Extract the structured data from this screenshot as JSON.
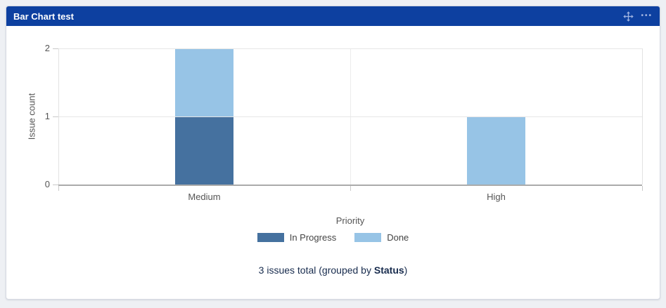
{
  "colors": {
    "page_bg": "#eef0f4",
    "header_bg": "#0d40a0",
    "header_icon": "#9fb3e0",
    "axis_text": "#555555",
    "legend_text": "#444444",
    "footer_text": "#172b4d",
    "grid_line": "#e6e6e6",
    "boundary_line": "#ececec",
    "axis_line": "#ababab",
    "tick_mark": "#c9c9c9"
  },
  "gadget": {
    "title": "Bar Chart test"
  },
  "chart_data": {
    "type": "bar",
    "stacked": true,
    "title": "",
    "xlabel": "Priority",
    "ylabel": "Issue count",
    "categories": [
      "Medium",
      "High"
    ],
    "series": [
      {
        "name": "In Progress",
        "color": "#45719f",
        "values": [
          1,
          0
        ]
      },
      {
        "name": "Done",
        "color": "#97c4e6",
        "values": [
          1,
          1
        ]
      }
    ],
    "yticks": [
      0,
      1,
      2
    ],
    "ylim": [
      0,
      2
    ],
    "grid": true,
    "legend_position": "bottom"
  },
  "footer": {
    "prefix": "3 issues total (grouped by ",
    "group_by": "Status",
    "suffix": ")"
  }
}
